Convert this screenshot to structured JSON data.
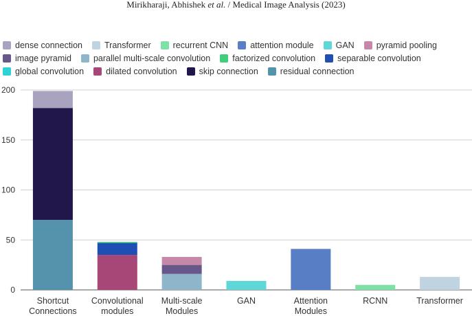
{
  "header": {
    "authors_prefix": "Mirikharaji, Abhishek ",
    "et_al": "et al.",
    "journal_suffix": " / Medical Image Analysis (2023)"
  },
  "chart_data": {
    "type": "bar",
    "stacked": true,
    "title": "",
    "xlabel": "",
    "ylabel": "",
    "ylim": [
      0,
      200
    ],
    "yticks": [
      0,
      50,
      100,
      150,
      200
    ],
    "grid": true,
    "legend_position": "top",
    "categories": [
      [
        "Shortcut",
        "Connections"
      ],
      [
        "Convolutional",
        "modules"
      ],
      [
        "Multi-scale",
        "Modules"
      ],
      [
        "GAN"
      ],
      [
        "Attention",
        "Modules"
      ],
      [
        "RCNN"
      ],
      [
        "Transformer"
      ]
    ],
    "legend": [
      {
        "name": "dense connection",
        "color": "#a9a3bf"
      },
      {
        "name": "Transformer",
        "color": "#bfd4e0"
      },
      {
        "name": "recurrent CNN",
        "color": "#7fe0a6"
      },
      {
        "name": "attention module",
        "color": "#587ec6"
      },
      {
        "name": "GAN",
        "color": "#5fd7d9"
      },
      {
        "name": "pyramid pooling",
        "color": "#c688a8"
      },
      {
        "name": "image pyramid",
        "color": "#675889"
      },
      {
        "name": "parallel multi-scale convolution",
        "color": "#8fb5cb"
      },
      {
        "name": "factorized convolution",
        "color": "#3fcf7c"
      },
      {
        "name": "separable convolution",
        "color": "#1f4fb3"
      },
      {
        "name": "global convolution",
        "color": "#2fd3d3"
      },
      {
        "name": "dilated convolution",
        "color": "#a74778"
      },
      {
        "name": "skip connection",
        "color": "#21174b"
      },
      {
        "name": "residual connection",
        "color": "#5593ad"
      }
    ],
    "legend_rows": [
      [
        0,
        1,
        2,
        3,
        4,
        5
      ],
      [
        6,
        7,
        8,
        9
      ],
      [
        10,
        11,
        12,
        13
      ]
    ],
    "stack_order": [
      "residual connection",
      "skip connection",
      "dense connection",
      "dilated convolution",
      "global convolution",
      "separable convolution",
      "factorized convolution",
      "parallel multi-scale convolution",
      "image pyramid",
      "pyramid pooling",
      "GAN",
      "attention module",
      "recurrent CNN",
      "Transformer"
    ],
    "series": [
      {
        "name": "residual connection",
        "values": [
          70,
          0,
          0,
          0,
          0,
          0,
          0
        ]
      },
      {
        "name": "skip connection",
        "values": [
          112,
          0,
          0,
          0,
          0,
          0,
          0
        ]
      },
      {
        "name": "dense connection",
        "values": [
          17,
          0,
          0,
          0,
          0,
          0,
          0
        ]
      },
      {
        "name": "dilated convolution",
        "values": [
          0,
          35,
          0,
          0,
          0,
          0,
          0
        ]
      },
      {
        "name": "global convolution",
        "values": [
          0,
          0,
          0,
          0,
          0,
          0,
          0
        ]
      },
      {
        "name": "separable convolution",
        "values": [
          0,
          12,
          0,
          0,
          0,
          0,
          0
        ]
      },
      {
        "name": "factorized convolution",
        "values": [
          0,
          1,
          0,
          0,
          0,
          0,
          0
        ]
      },
      {
        "name": "parallel multi-scale convolution",
        "values": [
          0,
          0,
          16,
          0,
          0,
          0,
          0
        ]
      },
      {
        "name": "image pyramid",
        "values": [
          0,
          0,
          9,
          0,
          0,
          0,
          0
        ]
      },
      {
        "name": "pyramid pooling",
        "values": [
          0,
          0,
          8,
          0,
          0,
          0,
          0
        ]
      },
      {
        "name": "GAN",
        "values": [
          0,
          0,
          0,
          9,
          0,
          0,
          0
        ]
      },
      {
        "name": "attention module",
        "values": [
          0,
          0,
          0,
          0,
          41,
          0,
          0
        ]
      },
      {
        "name": "recurrent CNN",
        "values": [
          0,
          0,
          0,
          0,
          0,
          5,
          0
        ]
      },
      {
        "name": "Transformer",
        "values": [
          0,
          0,
          0,
          0,
          0,
          0,
          13
        ]
      }
    ]
  }
}
